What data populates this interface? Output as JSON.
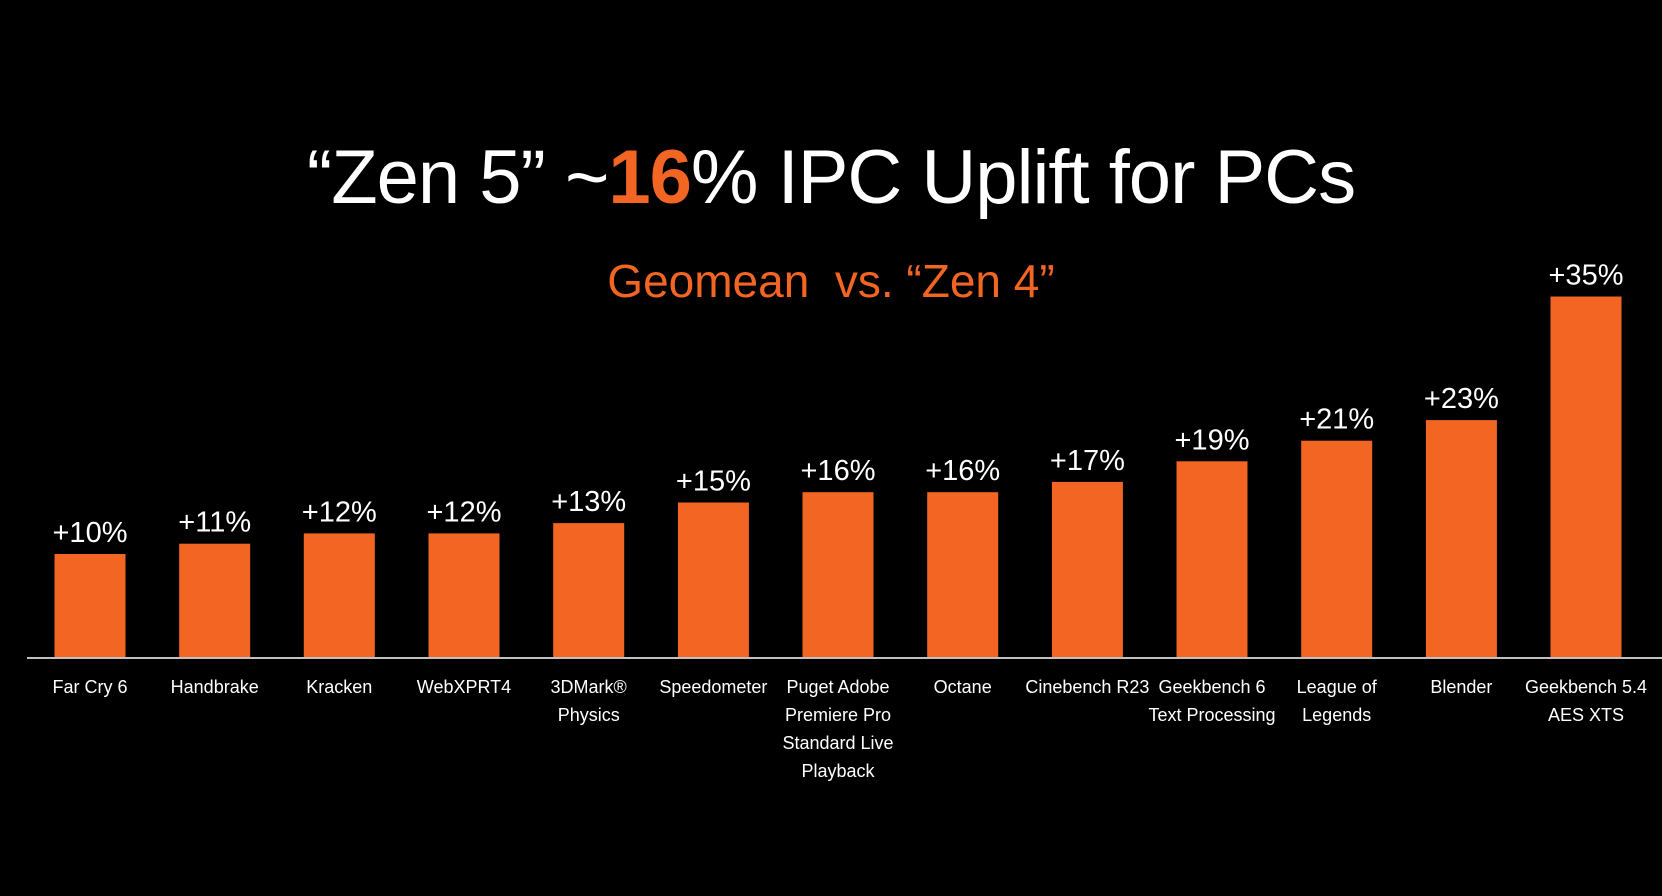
{
  "title": {
    "prefix": "“Zen 5” ~",
    "highlight": "16",
    "suffix": "% IPC Uplift for PCs"
  },
  "subtitle": "Geomean  vs. “Zen 4”",
  "colors": {
    "background": "#000000",
    "bar": "#f26522",
    "text": "#ffffff",
    "accent": "#f26522",
    "axis": "#ffffff"
  },
  "chart_data": {
    "type": "bar",
    "categories": [
      "Far Cry 6",
      "Handbrake",
      "Kracken",
      "WebXPRT4",
      "3DMark® Physics",
      "Speedometer",
      "Puget Adobe Premiere Pro Standard Live Playback",
      "Octane",
      "Cinebench R23",
      "Geekbench 6 Text Processing",
      "League of Legends",
      "Blender",
      "Geekbench 5.4 AES XTS"
    ],
    "category_lines": [
      [
        "Far Cry 6"
      ],
      [
        "Handbrake"
      ],
      [
        "Kracken"
      ],
      [
        "WebXPRT4"
      ],
      [
        "3DMark®",
        "Physics"
      ],
      [
        "Speedometer"
      ],
      [
        "Puget Adobe",
        "Premiere Pro",
        "Standard Live",
        "Playback"
      ],
      [
        "Octane"
      ],
      [
        "Cinebench R23"
      ],
      [
        "Geekbench 6",
        "Text Processing"
      ],
      [
        "League of",
        "Legends"
      ],
      [
        "Blender"
      ],
      [
        "Geekbench 5.4",
        "AES XTS"
      ]
    ],
    "values": [
      10,
      11,
      12,
      12,
      13,
      15,
      16,
      16,
      17,
      19,
      21,
      23,
      35
    ],
    "value_labels": [
      "+10%",
      "+11%",
      "+12%",
      "+12%",
      "+13%",
      "+15%",
      "+16%",
      "+16%",
      "+17%",
      "+19%",
      "+21%",
      "+23%",
      "+35%"
    ],
    "ylim": [
      0,
      35
    ],
    "grid": false,
    "legend": "none",
    "xlabel": "",
    "ylabel": ""
  }
}
